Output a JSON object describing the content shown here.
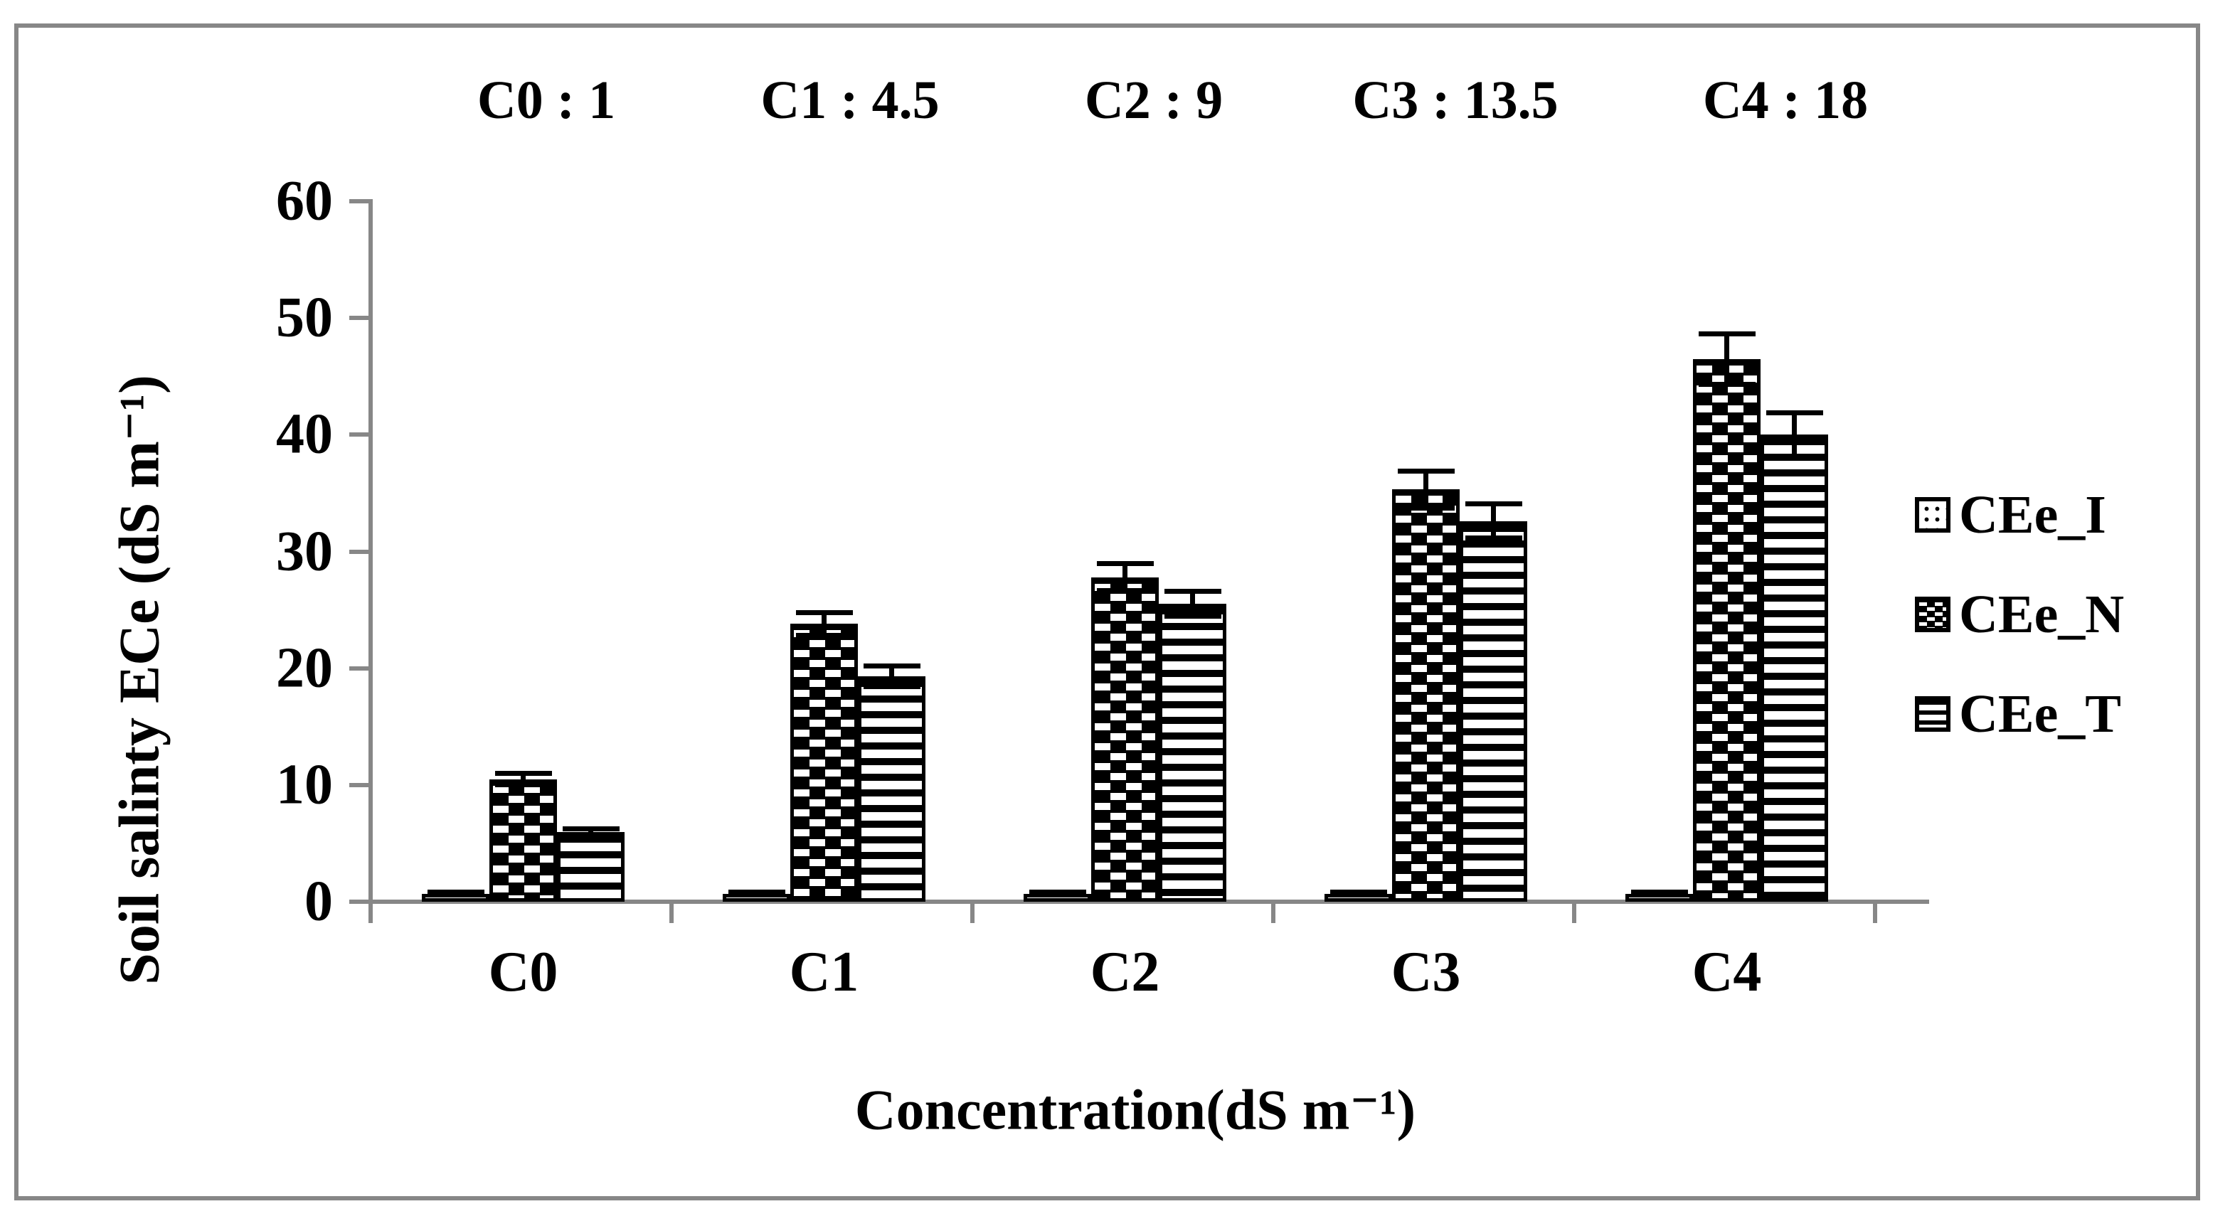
{
  "figure": {
    "background": "#ffffff",
    "frame_color": "#878787",
    "axis_color": "#878787",
    "bar_color": "#000000"
  },
  "chart_data": {
    "type": "bar",
    "title": "",
    "xlabel": "Concentration(dS m⁻¹)",
    "ylabel": "Soil salinty  ECe (dS m⁻¹)",
    "categories": [
      "C0",
      "C1",
      "C2",
      "C3",
      "C4"
    ],
    "concentration_annotations": [
      "C0 : 1",
      "C1 : 4.5",
      "C2 : 9",
      "C3 : 13.5",
      "C4 : 18"
    ],
    "series": [
      {
        "name": "CEe_I",
        "pattern": "dots",
        "values": [
          0.7,
          0.7,
          0.7,
          0.7,
          0.7
        ],
        "errors": [
          0.15,
          0.15,
          0.15,
          0.15,
          0.15
        ]
      },
      {
        "name": "CEe_N",
        "pattern": "weave",
        "values": [
          10.5,
          23.8,
          27.8,
          35.3,
          46.5
        ],
        "errors": [
          0.5,
          1.0,
          1.2,
          1.6,
          2.2
        ]
      },
      {
        "name": "CEe_T",
        "pattern": "hlines",
        "values": [
          6.0,
          19.3,
          25.5,
          32.6,
          40.0
        ],
        "errors": [
          0.3,
          0.9,
          1.1,
          1.5,
          1.9
        ]
      }
    ],
    "ylim": [
      0,
      60
    ],
    "yticks": [
      0,
      10,
      20,
      30,
      40,
      50,
      60
    ],
    "grid": false,
    "error_bars": true,
    "legend_position": "right"
  }
}
